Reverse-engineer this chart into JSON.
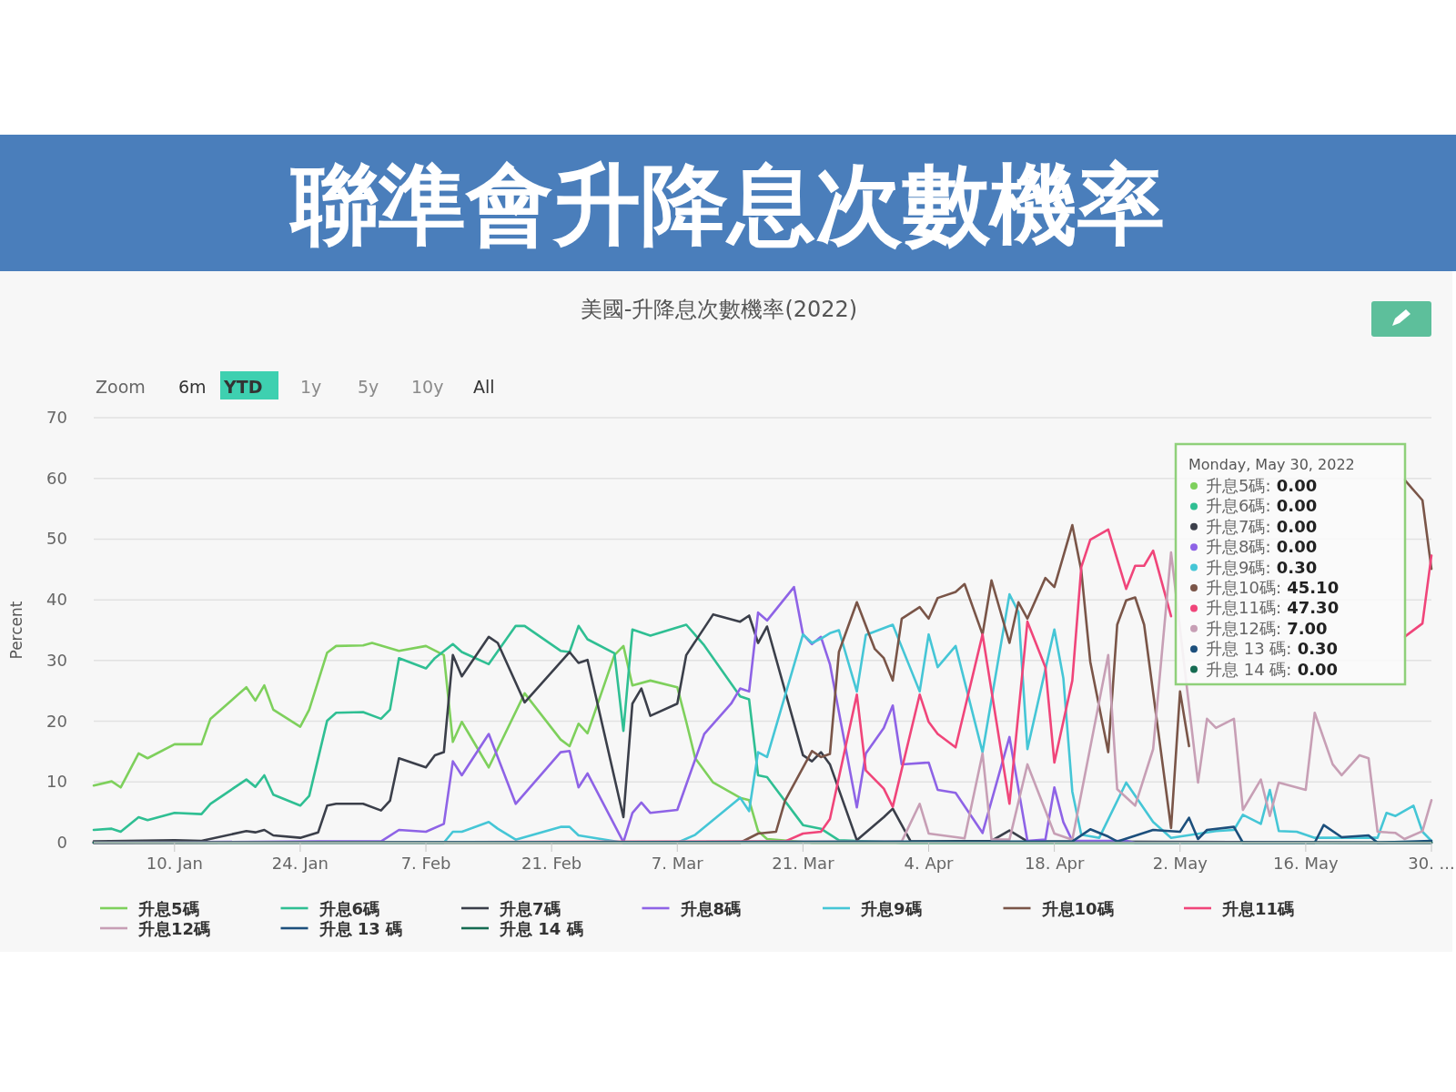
{
  "chart_data": {
    "type": "line",
    "title": "聯準會升降息次數機率",
    "subtitle": "美國-升降息次數機率(2022)",
    "ylabel": "Percent",
    "annotations": [
      "Zoom",
      "6m",
      "YTD",
      "1y",
      "5y",
      "10y",
      "All",
      "Monday, May 30, 2022",
      "升息5碼: 0.00",
      "升息6碼: 0.00",
      "升息7碼: 0.00",
      "升息8碼: 0.00",
      "升息9碼: 0.30",
      "升息10碼: 45.10",
      "升息11碼: 47.30",
      "升息12碼: 7.00",
      "升息 13 碼: 0.30",
      "升息 14 碼: 0.00"
    ],
    "xlim": [
      "2022-01-01",
      "2022-05-30"
    ],
    "xticks": [
      {
        "value": "2022-01-10",
        "label": "10. Jan"
      },
      {
        "value": "2022-01-24",
        "label": "24. Jan"
      },
      {
        "value": "2022-02-07",
        "label": "7. Feb"
      },
      {
        "value": "2022-02-21",
        "label": "21. Feb"
      },
      {
        "value": "2022-03-07",
        "label": "7. Mar"
      },
      {
        "value": "2022-03-21",
        "label": "21. Mar"
      },
      {
        "value": "2022-04-04",
        "label": "4. Apr"
      },
      {
        "value": "2022-04-18",
        "label": "18. Apr"
      },
      {
        "value": "2022-05-02",
        "label": "2. May"
      },
      {
        "value": "2022-05-16",
        "label": "16. May"
      },
      {
        "value": "2022-05-30",
        "label": "30. ..."
      }
    ],
    "ylim": [
      0,
      70
    ],
    "yticks": [
      0,
      10,
      20,
      30,
      40,
      50,
      60,
      70
    ],
    "grid": "y",
    "legend": "bottom",
    "marker": "none",
    "line_style": "solid",
    "series": [
      {
        "name": "升息5碼",
        "color": "#7ed05c",
        "x": [
          "2022-01-01",
          "2022-01-03",
          "2022-01-04",
          "2022-01-06",
          "2022-01-07",
          "2022-01-10",
          "2022-01-13",
          "2022-01-14",
          "2022-01-18",
          "2022-01-19",
          "2022-01-20",
          "2022-01-21",
          "2022-01-24",
          "2022-01-25",
          "2022-01-27",
          "2022-01-28",
          "2022-01-31",
          "2022-02-01",
          "2022-02-04",
          "2022-02-07",
          "2022-02-09",
          "2022-02-10",
          "2022-02-11",
          "2022-02-14",
          "2022-02-18",
          "2022-02-22",
          "2022-02-23",
          "2022-02-24",
          "2022-02-25",
          "2022-02-28",
          "2022-03-01",
          "2022-03-02",
          "2022-03-04",
          "2022-03-07",
          "2022-03-08",
          "2022-03-09",
          "2022-03-11",
          "2022-03-14",
          "2022-03-15",
          "2022-03-16",
          "2022-03-17",
          "2022-03-22",
          "2022-05-30"
        ],
        "values": [
          9.4,
          10.1,
          9.1,
          14.7,
          13.9,
          16.2,
          16.2,
          20.4,
          25.6,
          23.4,
          25.9,
          21.9,
          19.1,
          21.9,
          31.3,
          32.4,
          32.5,
          32.9,
          31.6,
          32.4,
          30.9,
          16.6,
          19.9,
          12.4,
          24.6,
          17,
          15.9,
          19.6,
          18,
          30.9,
          32.4,
          25.9,
          26.7,
          25.6,
          19.9,
          13.9,
          9.9,
          7.4,
          7.0,
          1.9,
          0.6,
          0,
          0
        ]
      },
      {
        "name": "升息6碼",
        "color": "#2fbf93",
        "x": [
          "2022-01-01",
          "2022-01-03",
          "2022-01-04",
          "2022-01-06",
          "2022-01-07",
          "2022-01-10",
          "2022-01-13",
          "2022-01-14",
          "2022-01-18",
          "2022-01-19",
          "2022-01-20",
          "2022-01-21",
          "2022-01-24",
          "2022-01-25",
          "2022-01-27",
          "2022-01-28",
          "2022-01-31",
          "2022-02-02",
          "2022-02-03",
          "2022-02-04",
          "2022-02-07",
          "2022-02-08",
          "2022-02-10",
          "2022-02-11",
          "2022-02-14",
          "2022-02-17",
          "2022-02-18",
          "2022-02-22",
          "2022-02-23",
          "2022-02-24",
          "2022-02-25",
          "2022-02-28",
          "2022-03-01",
          "2022-03-02",
          "2022-03-04",
          "2022-03-08",
          "2022-03-10",
          "2022-03-14",
          "2022-03-15",
          "2022-03-16",
          "2022-03-17",
          "2022-03-21",
          "2022-03-23",
          "2022-03-25",
          "2022-04-01",
          "2022-05-30"
        ],
        "values": [
          2.1,
          2.3,
          1.8,
          4.2,
          3.7,
          4.9,
          4.7,
          6.4,
          10.4,
          9.2,
          11.1,
          7.9,
          6.1,
          7.7,
          20.1,
          21.4,
          21.5,
          20.4,
          21.9,
          30.4,
          28.7,
          30.4,
          32.7,
          31.4,
          29.4,
          35.7,
          35.7,
          31.6,
          31.4,
          35.7,
          33.5,
          31.2,
          18.4,
          35.1,
          34.1,
          35.9,
          32.5,
          24.1,
          23.6,
          11.1,
          10.8,
          2.9,
          2.3,
          0.4,
          0,
          0
        ]
      },
      {
        "name": "升息7碼",
        "color": "#3b3f4a",
        "x": [
          "2022-01-01",
          "2022-01-10",
          "2022-01-13",
          "2022-01-18",
          "2022-01-19",
          "2022-01-20",
          "2022-01-21",
          "2022-01-24",
          "2022-01-26",
          "2022-01-27",
          "2022-01-28",
          "2022-01-31",
          "2022-02-02",
          "2022-02-03",
          "2022-02-04",
          "2022-02-07",
          "2022-02-08",
          "2022-02-09",
          "2022-02-10",
          "2022-02-11",
          "2022-02-14",
          "2022-02-15",
          "2022-02-18",
          "2022-02-23",
          "2022-02-24",
          "2022-02-25",
          "2022-03-01",
          "2022-03-02",
          "2022-03-03",
          "2022-03-04",
          "2022-03-07",
          "2022-03-08",
          "2022-03-11",
          "2022-03-14",
          "2022-03-15",
          "2022-03-16",
          "2022-03-17",
          "2022-03-21",
          "2022-03-22",
          "2022-03-23",
          "2022-03-24",
          "2022-03-27",
          "2022-03-30",
          "2022-03-31",
          "2022-04-02",
          "2022-04-11",
          "2022-04-13",
          "2022-04-15",
          "2022-05-30"
        ],
        "values": [
          0.2,
          0.4,
          0.3,
          1.9,
          1.7,
          2.1,
          1.2,
          0.8,
          1.7,
          6.1,
          6.4,
          6.4,
          5.3,
          6.9,
          13.9,
          12.4,
          14.4,
          14.9,
          30.9,
          27.4,
          33.9,
          32.9,
          23.1,
          31.4,
          29.6,
          30.1,
          4.2,
          22.9,
          25.4,
          20.9,
          22.9,
          30.9,
          37.6,
          36.4,
          37.4,
          32.9,
          35.6,
          14.4,
          13.4,
          14.9,
          12.9,
          0.4,
          4.2,
          5.6,
          0.2,
          0.3,
          2.0,
          0.2,
          0
        ]
      },
      {
        "name": "升息8碼",
        "color": "#8e63e6",
        "x": [
          "2022-01-01",
          "2022-01-26",
          "2022-02-02",
          "2022-02-04",
          "2022-02-07",
          "2022-02-09",
          "2022-02-10",
          "2022-02-11",
          "2022-02-14",
          "2022-02-17",
          "2022-02-22",
          "2022-02-23",
          "2022-02-24",
          "2022-02-25",
          "2022-03-01",
          "2022-03-02",
          "2022-03-03",
          "2022-03-04",
          "2022-03-07",
          "2022-03-10",
          "2022-03-13",
          "2022-03-14",
          "2022-03-15",
          "2022-03-16",
          "2022-03-17",
          "2022-03-20",
          "2022-03-21",
          "2022-03-22",
          "2022-03-23",
          "2022-03-24",
          "2022-03-27",
          "2022-03-28",
          "2022-03-30",
          "2022-03-31",
          "2022-04-01",
          "2022-04-04",
          "2022-04-05",
          "2022-04-07",
          "2022-04-10",
          "2022-04-13",
          "2022-04-15",
          "2022-04-17",
          "2022-04-18",
          "2022-04-19",
          "2022-04-20",
          "2022-04-26",
          "2022-04-27",
          "2022-05-30"
        ],
        "values": [
          0,
          0.2,
          0.2,
          2.1,
          1.8,
          3.1,
          13.4,
          11.1,
          17.9,
          6.4,
          14.9,
          15.1,
          9.1,
          11.4,
          0.1,
          4.9,
          6.6,
          4.9,
          5.4,
          17.9,
          22.9,
          25.4,
          24.9,
          37.9,
          36.6,
          42.1,
          34.3,
          32.7,
          33.9,
          29.4,
          5.8,
          14.7,
          18.9,
          22.6,
          12.9,
          13.2,
          8.7,
          8.2,
          1.6,
          17.4,
          0.3,
          0.5,
          9.1,
          3.4,
          0.3,
          0.3,
          0,
          0
        ]
      },
      {
        "name": "升息9碼",
        "color": "#45c6d6",
        "x": [
          "2022-01-01",
          "2022-02-09",
          "2022-02-10",
          "2022-02-11",
          "2022-02-14",
          "2022-02-15",
          "2022-02-17",
          "2022-02-22",
          "2022-02-23",
          "2022-02-24",
          "2022-03-01",
          "2022-03-07",
          "2022-03-09",
          "2022-03-14",
          "2022-03-15",
          "2022-03-16",
          "2022-03-17",
          "2022-03-21",
          "2022-03-22",
          "2022-03-23",
          "2022-03-24",
          "2022-03-25",
          "2022-03-27",
          "2022-03-28",
          "2022-03-31",
          "2022-04-03",
          "2022-04-04",
          "2022-04-05",
          "2022-04-07",
          "2022-04-10",
          "2022-04-13",
          "2022-04-14",
          "2022-04-15",
          "2022-04-18",
          "2022-04-19",
          "2022-04-20",
          "2022-04-21",
          "2022-04-23",
          "2022-04-26",
          "2022-04-29",
          "2022-05-01",
          "2022-05-06",
          "2022-05-08",
          "2022-05-09",
          "2022-05-11",
          "2022-05-12",
          "2022-05-13",
          "2022-05-15",
          "2022-05-17",
          "2022-05-24",
          "2022-05-25",
          "2022-05-26",
          "2022-05-28",
          "2022-05-29",
          "2022-05-30"
        ],
        "values": [
          0,
          0,
          1.8,
          1.8,
          3.4,
          2.3,
          0.5,
          2.6,
          2.6,
          1.2,
          0,
          0,
          1.3,
          7.4,
          5.2,
          14.9,
          14.1,
          34.3,
          32.9,
          33.6,
          34.5,
          35,
          24.9,
          34.2,
          35.9,
          24.9,
          34.3,
          28.9,
          32.4,
          14.9,
          40.9,
          38,
          15.4,
          35.1,
          27.1,
          8.4,
          1.3,
          0.8,
          9.9,
          3.4,
          0.8,
          1.9,
          2.1,
          4.6,
          3.1,
          8.7,
          1.9,
          1.8,
          0.8,
          0.8,
          4.9,
          4.4,
          6.1,
          1.8,
          0.3
        ]
      },
      {
        "name": "升息10碼",
        "color": "#7a5548",
        "x": [
          "2022-01-01",
          "2022-03-14",
          "2022-03-16",
          "2022-03-18",
          "2022-03-19",
          "2022-03-22",
          "2022-03-23",
          "2022-03-24",
          "2022-03-25",
          "2022-03-27",
          "2022-03-29",
          "2022-03-30",
          "2022-03-31",
          "2022-04-01",
          "2022-04-03",
          "2022-04-04",
          "2022-04-05",
          "2022-04-07",
          "2022-04-08",
          "2022-04-10",
          "2022-04-11",
          "2022-04-13",
          "2022-04-14",
          "2022-04-15",
          "2022-04-17",
          "2022-04-18",
          "2022-04-20",
          "2022-04-21",
          "2022-04-22",
          "2022-04-24",
          "2022-04-25",
          "2022-04-26",
          "2022-04-27",
          "2022-04-28",
          "2022-05-01",
          "2022-05-02",
          "2022-05-03",
          "2022-05-11",
          "2022-05-27",
          "2022-05-29",
          "2022-05-30"
        ],
        "values": [
          0,
          0,
          1.5,
          1.8,
          6.9,
          15.1,
          14.1,
          14.6,
          31.4,
          39.6,
          31.9,
          30.4,
          26.7,
          36.9,
          38.8,
          36.9,
          40.3,
          41.3,
          42.6,
          34.3,
          43.2,
          32.9,
          39.6,
          36.9,
          43.6,
          42.1,
          52.3,
          44.8,
          29.8,
          14.9,
          35.9,
          39.9,
          40.4,
          35.9,
          2.4,
          24.9,
          15.9,
          null,
          59.8,
          56.4,
          45.1
        ]
      },
      {
        "name": "升息11碼",
        "color": "#f0457a",
        "x": [
          "2022-01-01",
          "2022-03-19",
          "2022-03-21",
          "2022-03-23",
          "2022-03-24",
          "2022-03-27",
          "2022-03-28",
          "2022-03-30",
          "2022-03-31",
          "2022-04-03",
          "2022-04-04",
          "2022-04-05",
          "2022-04-07",
          "2022-04-10",
          "2022-04-13",
          "2022-04-15",
          "2022-04-17",
          "2022-04-18",
          "2022-04-20",
          "2022-04-21",
          "2022-04-22",
          "2022-04-24",
          "2022-04-26",
          "2022-04-27",
          "2022-04-28",
          "2022-04-29",
          "2022-05-01",
          "2022-05-11",
          "2022-05-27",
          "2022-05-29",
          "2022-05-30"
        ],
        "values": [
          0,
          0.2,
          1.5,
          1.8,
          3.9,
          24.4,
          11.9,
          8.9,
          5.9,
          24.4,
          19.9,
          17.9,
          15.7,
          34.3,
          6.4,
          36.4,
          28.9,
          13.2,
          26.7,
          45.4,
          49.9,
          51.6,
          41.8,
          45.6,
          45.6,
          48.1,
          37.3,
          null,
          33.9,
          36.1,
          47.3
        ]
      },
      {
        "name": "升息12碼",
        "color": "#c79fb5",
        "x": [
          "2022-01-01",
          "2022-04-01",
          "2022-04-03",
          "2022-04-04",
          "2022-04-08",
          "2022-04-10",
          "2022-04-11",
          "2022-04-13",
          "2022-04-15",
          "2022-04-18",
          "2022-04-20",
          "2022-04-24",
          "2022-04-25",
          "2022-04-27",
          "2022-04-29",
          "2022-05-01",
          "2022-05-04",
          "2022-05-05",
          "2022-05-06",
          "2022-05-08",
          "2022-05-09",
          "2022-05-11",
          "2022-05-12",
          "2022-05-13",
          "2022-05-16",
          "2022-05-17",
          "2022-05-19",
          "2022-05-20",
          "2022-05-22",
          "2022-05-23",
          "2022-05-24",
          "2022-05-26",
          "2022-05-27",
          "2022-05-29",
          "2022-05-30"
        ],
        "values": [
          0,
          0.2,
          6.4,
          1.5,
          0.7,
          14.7,
          0.5,
          0.5,
          12.9,
          1.5,
          0.5,
          30.9,
          8.8,
          6.1,
          15.4,
          47.8,
          9.9,
          20.4,
          18.9,
          20.4,
          5.4,
          10.4,
          4.4,
          9.9,
          8.7,
          21.4,
          12.9,
          11.1,
          14.4,
          13.9,
          1.8,
          1.6,
          0.6,
          1.9,
          7.0
        ]
      },
      {
        "name": "升息 13 碼",
        "color": "#1c4f7c",
        "x": [
          "2022-01-01",
          "2022-04-20",
          "2022-04-22",
          "2022-04-24",
          "2022-04-25",
          "2022-04-29",
          "2022-05-02",
          "2022-05-03",
          "2022-05-04",
          "2022-05-05",
          "2022-05-08",
          "2022-05-09",
          "2022-05-17",
          "2022-05-18",
          "2022-05-20",
          "2022-05-23",
          "2022-05-24",
          "2022-05-30"
        ],
        "values": [
          0,
          0.2,
          2.2,
          1,
          0.2,
          2.1,
          1.8,
          4.1,
          0.6,
          2.1,
          2.6,
          0,
          0,
          2.9,
          0.9,
          1.2,
          0,
          0.3
        ]
      },
      {
        "name": "升息 14 碼",
        "color": "#156b52",
        "x": [
          "2022-01-01",
          "2022-05-30"
        ],
        "values": [
          0,
          0
        ]
      }
    ]
  }
}
